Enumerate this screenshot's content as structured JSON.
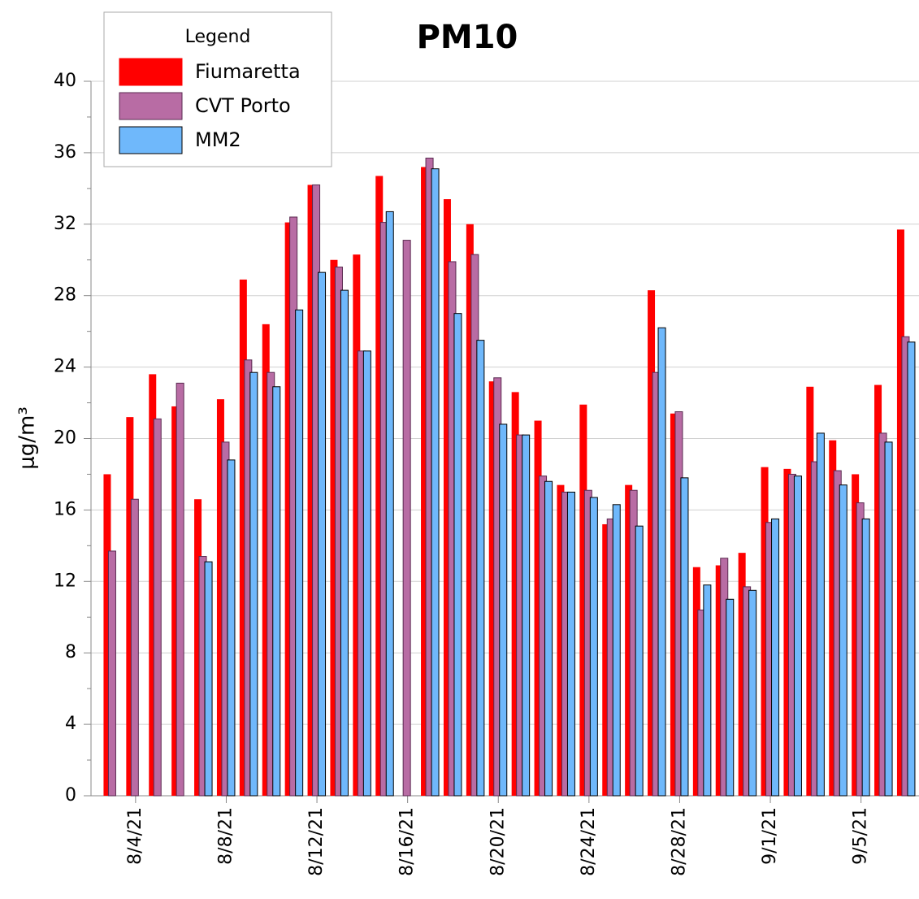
{
  "chart_data": {
    "type": "bar",
    "title": "PM10",
    "y_label": "μg/m³",
    "legend_title": "Legend",
    "categories": [
      null,
      "8/4/21",
      null,
      null,
      null,
      "8/8/21",
      null,
      null,
      null,
      "8/12/21",
      null,
      null,
      null,
      "8/16/21",
      null,
      null,
      null,
      "8/20/21",
      null,
      null,
      null,
      "8/24/21",
      null,
      null,
      null,
      "8/28/21",
      null,
      null,
      null,
      "9/1/21",
      null,
      null,
      null,
      "9/5/21",
      null,
      null
    ],
    "series": [
      {
        "name": "Fiumaretta",
        "color": "#ff0000",
        "values": [
          18.0,
          21.2,
          23.6,
          21.8,
          16.6,
          22.2,
          28.9,
          26.4,
          32.1,
          34.2,
          30.0,
          30.3,
          34.7,
          null,
          35.2,
          33.4,
          32.0,
          23.2,
          22.6,
          21.0,
          17.4,
          21.9,
          15.2,
          17.4,
          28.3,
          21.4,
          12.8,
          12.9,
          13.6,
          18.4,
          18.3,
          22.9,
          19.9,
          18.0,
          23.0,
          31.7
        ]
      },
      {
        "name": "CVT Porto",
        "color": "#b86ca4",
        "values": [
          13.7,
          16.6,
          21.1,
          23.1,
          13.4,
          19.8,
          24.4,
          23.7,
          32.4,
          34.2,
          29.6,
          24.9,
          32.1,
          31.1,
          35.7,
          29.9,
          30.3,
          23.4,
          20.2,
          17.9,
          17.0,
          17.1,
          15.5,
          17.1,
          23.7,
          21.5,
          10.4,
          13.3,
          11.7,
          15.3,
          18.0,
          18.7,
          18.2,
          16.4,
          20.3,
          25.7
        ]
      },
      {
        "name": "MM2",
        "color": "#6fb8fb",
        "values": [
          null,
          null,
          0,
          null,
          13.1,
          18.8,
          23.7,
          22.9,
          27.2,
          29.3,
          28.3,
          24.9,
          32.7,
          null,
          35.1,
          27.0,
          25.5,
          20.8,
          20.2,
          17.6,
          17.0,
          16.7,
          16.3,
          15.1,
          26.2,
          17.8,
          11.8,
          11.0,
          11.5,
          15.5,
          17.9,
          20.3,
          17.4,
          15.5,
          19.8,
          25.4
        ]
      }
    ],
    "ylim": [
      0,
      40
    ],
    "yticks": [
      0,
      4,
      8,
      12,
      16,
      20,
      24,
      28,
      32,
      36,
      40
    ],
    "grid": true
  }
}
